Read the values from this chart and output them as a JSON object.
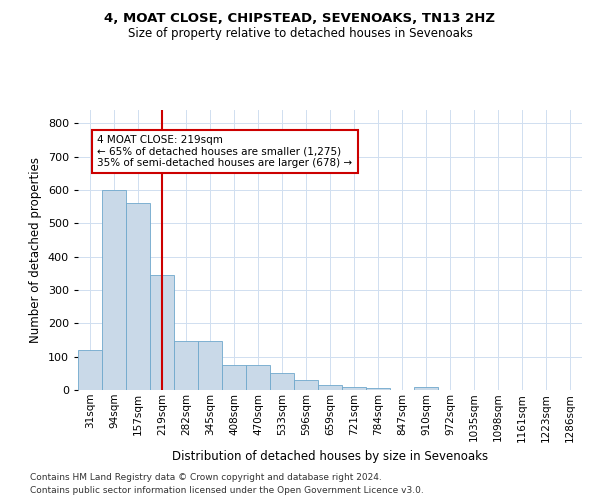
{
  "title1": "4, MOAT CLOSE, CHIPSTEAD, SEVENOAKS, TN13 2HZ",
  "title2": "Size of property relative to detached houses in Sevenoaks",
  "xlabel": "Distribution of detached houses by size in Sevenoaks",
  "ylabel": "Number of detached properties",
  "categories": [
    "31sqm",
    "94sqm",
    "157sqm",
    "219sqm",
    "282sqm",
    "345sqm",
    "408sqm",
    "470sqm",
    "533sqm",
    "596sqm",
    "659sqm",
    "721sqm",
    "784sqm",
    "847sqm",
    "910sqm",
    "972sqm",
    "1035sqm",
    "1098sqm",
    "1161sqm",
    "1223sqm",
    "1286sqm"
  ],
  "values": [
    120,
    600,
    560,
    345,
    148,
    148,
    75,
    75,
    50,
    30,
    15,
    10,
    5,
    0,
    10,
    0,
    0,
    0,
    0,
    0,
    0
  ],
  "bar_color": "#c9d9e8",
  "bar_edge_color": "#6fa8cc",
  "highlight_index": 3,
  "highlight_line_color": "#cc0000",
  "annotation_text": "4 MOAT CLOSE: 219sqm\n← 65% of detached houses are smaller (1,275)\n35% of semi-detached houses are larger (678) →",
  "annotation_box_color": "#ffffff",
  "annotation_box_edge": "#cc0000",
  "ylim": [
    0,
    840
  ],
  "yticks": [
    0,
    100,
    200,
    300,
    400,
    500,
    600,
    700,
    800
  ],
  "footer1": "Contains HM Land Registry data © Crown copyright and database right 2024.",
  "footer2": "Contains public sector information licensed under the Open Government Licence v3.0.",
  "bg_color": "#ffffff",
  "grid_color": "#d0dff0"
}
